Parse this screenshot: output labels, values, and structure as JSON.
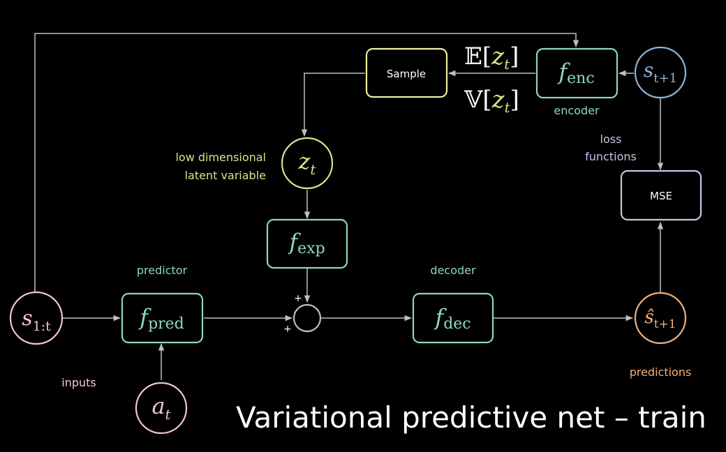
{
  "title": "Variational predictive net – train",
  "nodes": {
    "s_input": {
      "base": "s",
      "sub": "1:t"
    },
    "a_input": {
      "base": "a",
      "sub": "t"
    },
    "s_next": {
      "base": "s",
      "sub": "t+1"
    },
    "z_latent": {
      "base": "z",
      "sub": "t"
    },
    "s_hat": {
      "base": "ŝ",
      "sub": "t+1"
    }
  },
  "boxes": {
    "f_pred": {
      "base": "f",
      "sub": "pred"
    },
    "f_exp": {
      "base": "f",
      "sub": "exp"
    },
    "f_dec": {
      "base": "f",
      "sub": "dec"
    },
    "f_enc": {
      "base": "f",
      "sub": "enc"
    },
    "sample": "Sample",
    "mse": "MSE"
  },
  "expectation": {
    "op": "𝔼",
    "var": "z",
    "sub": "t"
  },
  "variance": {
    "op": "𝕍",
    "var": "z",
    "sub": "t"
  },
  "labels": {
    "predictor": "predictor",
    "decoder": "decoder",
    "encoder": "encoder",
    "inputs": "inputs",
    "predictions": "predictions",
    "latent_line1": "low dimensional",
    "latent_line2": "latent variable",
    "loss_line1": "loss",
    "loss_line2": "functions",
    "plus_top": "+",
    "plus_bottom": "+"
  },
  "colors": {
    "background": "#000000",
    "pink": "#f2c4d8",
    "teal": "#8fd6c2",
    "green": "#d6e58a",
    "yellow": "#f2eda0",
    "blue": "#8fb3d9",
    "lavender": "#c7c5e6",
    "orange": "#f2b07a",
    "gray": "#bfbfbf",
    "white": "#ffffff"
  }
}
